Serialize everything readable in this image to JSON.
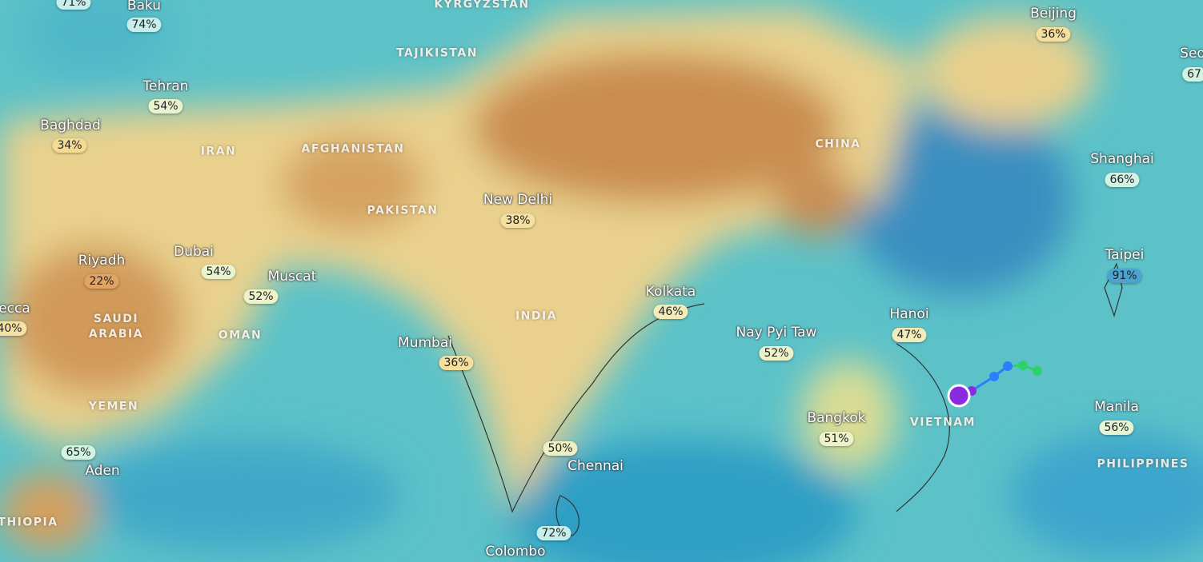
{
  "cities": [
    {
      "name": null,
      "value": "71%",
      "color": "#c6efec"
    },
    {
      "name": "Baku",
      "value": "74%",
      "color": "#c6efec"
    },
    {
      "name": "Tehran",
      "value": "54%",
      "color": "#e9f3cf"
    },
    {
      "name": "Baghdad",
      "value": "34%",
      "color": "#f4da92"
    },
    {
      "name": "Riyadh",
      "value": "22%",
      "color": "#e2a466"
    },
    {
      "name": "Dubai",
      "value": "54%",
      "color": "#e9f3cf"
    },
    {
      "name": "Muscat",
      "value": "52%",
      "color": "#eef2c8"
    },
    {
      "name": "ecca",
      "value": "40%",
      "color": "#f4e3a4"
    },
    {
      "name": "Mumbai",
      "value": "36%",
      "color": "#f4df9c"
    },
    {
      "name": "New Delhi",
      "value": "38%",
      "color": "#f4e0a0"
    },
    {
      "name": "Kolkata",
      "value": "46%",
      "color": "#f2ecba"
    },
    {
      "name": "Nay Pyi Taw",
      "value": "52%",
      "color": "#eef2c8"
    },
    {
      "name": "Hanoi",
      "value": "47%",
      "color": "#f2ecba"
    },
    {
      "name": "Bangkok",
      "value": "51%",
      "color": "#eef2c8"
    },
    {
      "name": "Chennai",
      "value": "50%",
      "color": "#eef0c4"
    },
    {
      "name": "Colombo",
      "value": "72%",
      "color": "#c6efec"
    },
    {
      "name": "Aden",
      "value": "65%",
      "color": "#d2f2e2"
    },
    {
      "name": "Beijing",
      "value": "36%",
      "color": "#f4df9c"
    },
    {
      "name": "Seo",
      "value": "67",
      "color": "#d2f2e2"
    },
    {
      "name": "Shanghai",
      "value": "66%",
      "color": "#d2f2e2"
    },
    {
      "name": "Taipei",
      "value": "91%",
      "color": "#4aa3d3"
    },
    {
      "name": "Manila",
      "value": "56%",
      "color": "#e4f4d4"
    }
  ],
  "countries": [
    "KYRGYZSTAN",
    "TAJIKISTAN",
    "IRAN",
    "AFGHANISTAN",
    "PAKISTAN",
    "CHINA",
    "INDIA",
    "SAUDI ARABIA",
    "OMAN",
    "YEMEN",
    "VIETNAM",
    "PHILIPPINES",
    "THIOPIA"
  ]
}
